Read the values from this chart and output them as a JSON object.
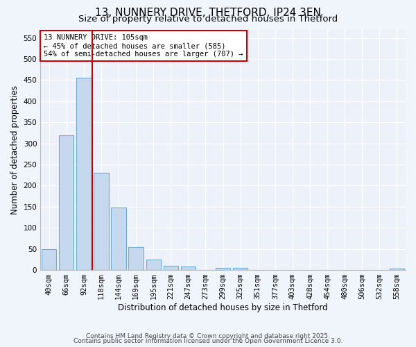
{
  "title1": "13, NUNNERY DRIVE, THETFORD, IP24 3EN",
  "title2": "Size of property relative to detached houses in Thetford",
  "xlabel": "Distribution of detached houses by size in Thetford",
  "ylabel": "Number of detached properties",
  "bar_values": [
    50,
    320,
    455,
    230,
    148,
    55,
    25,
    10,
    8,
    0,
    5,
    5,
    0,
    0,
    0,
    0,
    0,
    0,
    0,
    0,
    3
  ],
  "categories": [
    "40sqm",
    "66sqm",
    "92sqm",
    "118sqm",
    "144sqm",
    "169sqm",
    "195sqm",
    "221sqm",
    "247sqm",
    "273sqm",
    "299sqm",
    "325sqm",
    "351sqm",
    "377sqm",
    "403sqm",
    "428sqm",
    "454sqm",
    "480sqm",
    "506sqm",
    "532sqm",
    "558sqm"
  ],
  "bar_color": "#c5d8ed",
  "bar_edge_color": "#6aaed6",
  "vline_x": 2.5,
  "vline_color": "#cc0000",
  "annotation_line1": "13 NUNNERY DRIVE: 105sqm",
  "annotation_line2": "← 45% of detached houses are smaller (585)",
  "annotation_line3": "54% of semi-detached houses are larger (707) →",
  "annotation_box_color": "#cc0000",
  "ylim": [
    0,
    570
  ],
  "yticks": [
    0,
    50,
    100,
    150,
    200,
    250,
    300,
    350,
    400,
    450,
    500,
    550
  ],
  "footer1": "Contains HM Land Registry data © Crown copyright and database right 2025.",
  "footer2": "Contains public sector information licensed under the Open Government Licence 3.0.",
  "bg_color": "#f0f4fb",
  "plot_bg_color": "#edf1f9",
  "title_fontsize": 11,
  "subtitle_fontsize": 9.5,
  "axis_label_fontsize": 8.5,
  "tick_fontsize": 7.5,
  "footer_fontsize": 6.5
}
